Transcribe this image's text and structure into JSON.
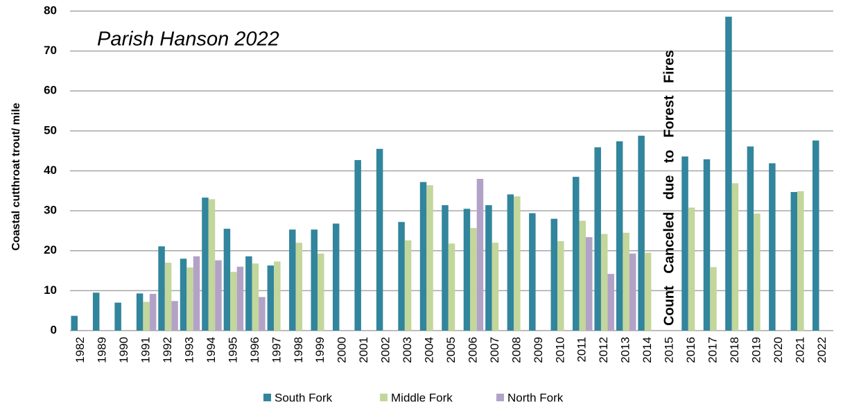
{
  "chart_data": {
    "type": "bar",
    "ylabel": "Coastal cutthroat trout/ mile",
    "annotations": [
      "Parish Hanson 2022",
      "Count Canceled due to Forest Fires"
    ],
    "categories": [
      "1982",
      "1989",
      "1990",
      "1991",
      "1992",
      "1993",
      "1994",
      "1995",
      "1996",
      "1997",
      "1998",
      "1999",
      "2000",
      "2001",
      "2002",
      "2003",
      "2004",
      "2005",
      "2006",
      "2007",
      "2008",
      "2009",
      "2010",
      "2011",
      "2012",
      "2013",
      "2014",
      "2015",
      "2016",
      "2017",
      "2018",
      "2019",
      "2020",
      "2021",
      "2022"
    ],
    "series": [
      {
        "name": "South Fork",
        "color": "#31859c",
        "values": [
          3.7,
          9.5,
          7,
          9.3,
          21.1,
          18,
          33.3,
          25.5,
          18.6,
          16.3,
          25.3,
          25.3,
          26.8,
          42.7,
          45.5,
          27.2,
          37.2,
          31.4,
          30.5,
          31.4,
          34.1,
          29.4,
          28,
          38.5,
          45.9,
          47.4,
          48.8,
          null,
          43.6,
          42.9,
          78.6,
          46.1,
          41.9,
          34.7,
          47.6
        ]
      },
      {
        "name": "Middle Fork",
        "color": "#c3d69b",
        "values": [
          null,
          null,
          null,
          7.2,
          17,
          15.8,
          32.9,
          14.7,
          16.8,
          17.3,
          22,
          19.3,
          null,
          null,
          null,
          22.6,
          36.4,
          21.8,
          25.7,
          22,
          33.6,
          null,
          22.4,
          27.5,
          24.2,
          24.5,
          19.5,
          null,
          30.8,
          15.9,
          36.9,
          29.3,
          null,
          34.9,
          null
        ]
      },
      {
        "name": "North Fork",
        "color": "#b3a2c7",
        "values": [
          null,
          null,
          null,
          9.2,
          7.4,
          18.6,
          17.6,
          16,
          8.4,
          null,
          null,
          null,
          null,
          null,
          null,
          null,
          null,
          null,
          38,
          null,
          null,
          null,
          null,
          23.4,
          14.2,
          19.3,
          null,
          null,
          null,
          null,
          null,
          null,
          null,
          null,
          null
        ]
      }
    ],
    "ylim": [
      0,
      80
    ],
    "yticks": [
      0,
      10,
      20,
      30,
      40,
      50,
      60,
      70,
      80
    ],
    "grid": true,
    "legend": "bottom"
  }
}
